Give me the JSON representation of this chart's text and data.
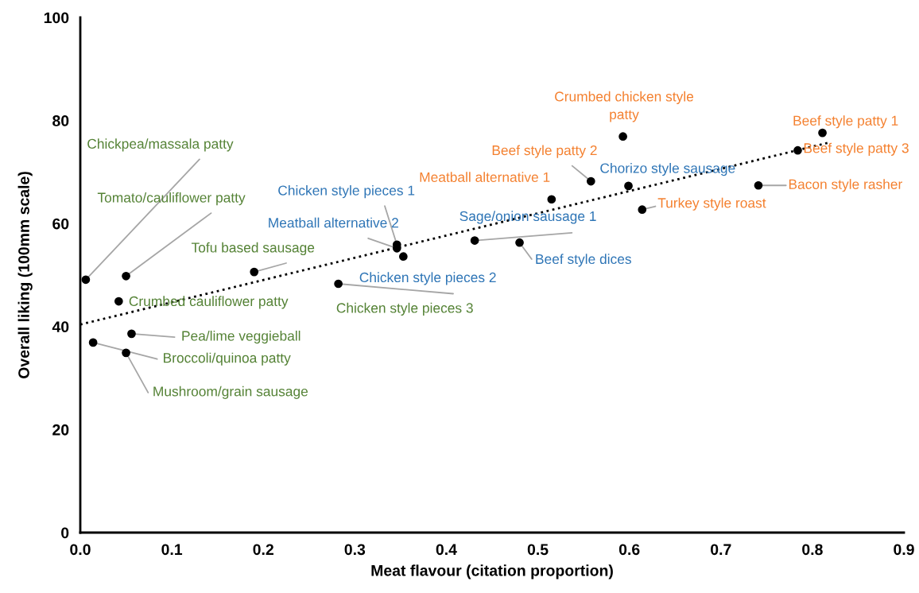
{
  "chart_data": {
    "type": "scatter",
    "xlabel": "Meat flavour (citation proportion)",
    "ylabel": "Overall liking (100mm scale)",
    "xlim": [
      0,
      0.9
    ],
    "xticks": [
      {
        "value": 0,
        "label": "0.0"
      },
      0.1,
      0.2,
      0.3,
      0.4,
      0.5,
      0.6,
      0.7,
      0.8,
      0.9
    ],
    "ylim": [
      0,
      100
    ],
    "yticks": [
      0,
      20,
      40,
      60,
      80,
      100
    ],
    "grid": false,
    "legend": false,
    "marker": "circle",
    "series": [
      {
        "color": "#000000",
        "x": [
          0.006,
          0.05,
          0.19,
          0.042,
          0.282,
          0.056,
          0.014,
          0.05
        ],
        "values": [
          49.1,
          49.8,
          50.6,
          44.9,
          48.3,
          38.6,
          36.9,
          34.9
        ],
        "value_labels": [
          "Chickpea/massala patty",
          "Tomato/cauliflower patty",
          "Tofu based sausage",
          "Crumbed cauliflower patty",
          "Chicken style pieces 3",
          "Pea/lime veggieball",
          "Broccoli/quinoa patty",
          "Mushroom/grain sausage"
        ]
      },
      {
        "color": "#000000",
        "x": [
          0.346,
          0.346,
          0.353,
          0.431,
          0.48,
          0.599
        ],
        "values": [
          55.9,
          55.2,
          53.6,
          56.7,
          56.3,
          67.3
        ],
        "value_labels": [
          "Chicken style pieces 1",
          "Meatball alternative 2",
          "Chicken style pieces 2",
          "Sage/onion sausage 1",
          "Beef style dices",
          "Chorizo style sausage"
        ]
      },
      {
        "color": "#000000",
        "x": [
          0.515,
          0.558,
          0.593,
          0.614,
          0.741,
          0.784,
          0.811
        ],
        "values": [
          64.7,
          68.2,
          76.9,
          62.7,
          67.4,
          74.2,
          77.6
        ],
        "value_labels": [
          "Meatball alternative 1",
          "Beef style patty 2",
          "Crumbed chicken style\npatty",
          "Turkey style roast",
          "Bacon style rasher",
          "Beef style patty 3",
          "Beef style patty 1"
        ]
      },
      {
        "type": "line",
        "color": "#000000",
        "line_style": "dotted",
        "marker": "none",
        "x": [
          0,
          0.82
        ],
        "values": [
          40.4,
          75.8
        ]
      }
    ]
  }
}
